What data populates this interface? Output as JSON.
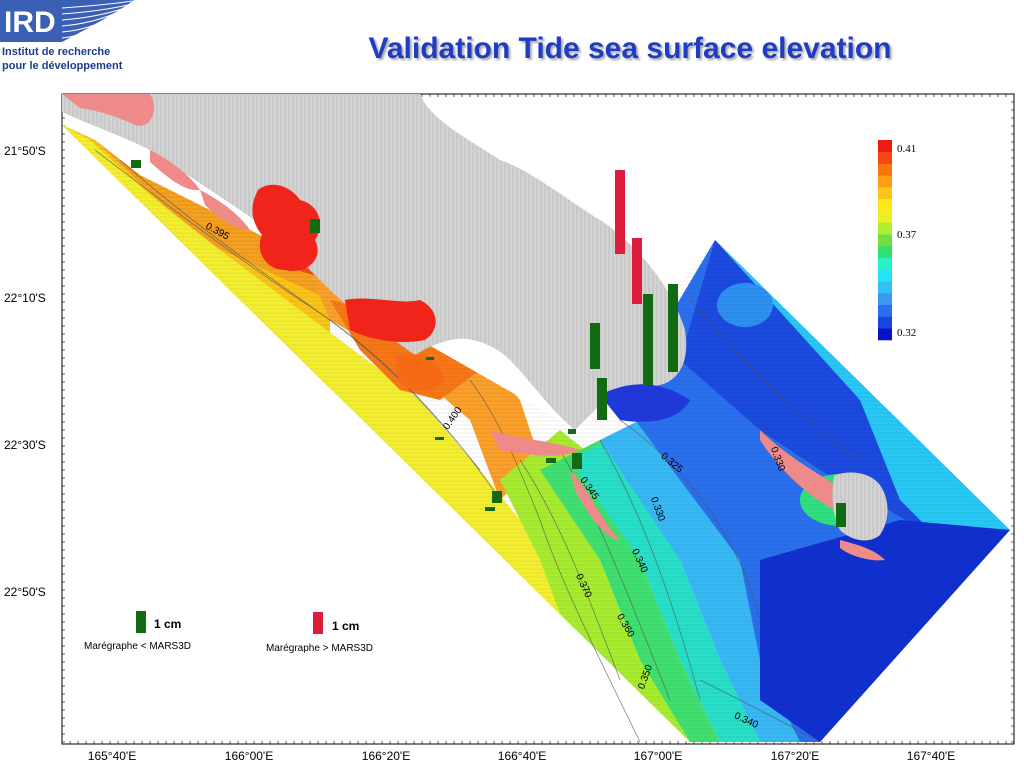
{
  "logo": {
    "name": "IRD",
    "line1": "Institut de recherche",
    "line2": "pour le développement"
  },
  "title": "Validation Tide sea surface elevation",
  "map": {
    "lat_labels": [
      "21°50'S",
      "22°10'S",
      "22°30'S",
      "22°50'S"
    ],
    "lon_labels": [
      "165°40'E",
      "166°00'E",
      "166°20'E",
      "166°40'E",
      "167°00'E",
      "167°20'E",
      "167°40'E"
    ],
    "contour_labels": [
      "0.395",
      "0.400",
      "0.325",
      "0.345",
      "0.330",
      "0.330",
      "0.340",
      "0.370",
      "0.360",
      "0.350",
      "0.340"
    ],
    "land_color": "#cccccc",
    "reef_color": "#ee8a8a"
  },
  "colorbar": {
    "labels": [
      "0.41",
      "0.37",
      "0.32"
    ],
    "colors": [
      "#0a12c8",
      "#1a44e0",
      "#2a6ef0",
      "#3a98f4",
      "#32c0f8",
      "#22e4f4",
      "#2af0c8",
      "#30e070",
      "#70e040",
      "#b0ee30",
      "#e8f028",
      "#fce818",
      "#fcc418",
      "#fc9e14",
      "#fa7410",
      "#f44810",
      "#ee1c10"
    ]
  },
  "bars": {
    "green_color": "#126b12",
    "red_color": "#dc1e3c"
  },
  "key": {
    "green_label": "1 cm",
    "green_caption": "Marégraphe < MARS3D",
    "red_label": "1 cm",
    "red_caption": "Marégraphe > MARS3D"
  }
}
